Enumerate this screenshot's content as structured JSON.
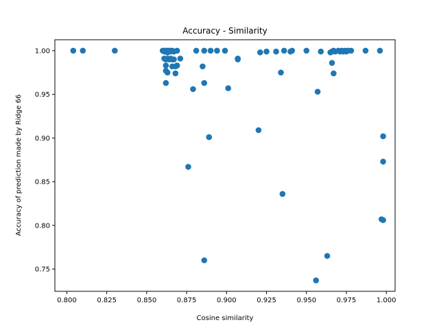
{
  "chart_data": {
    "type": "scatter",
    "title": "Accuracy - Similarity",
    "xlabel": "Cosine similarity",
    "ylabel": "Accuracy of prediction made by Ridge 66",
    "xlim": [
      0.7925,
      1.0055
    ],
    "ylim": [
      0.7245,
      1.0125
    ],
    "xticks": [
      0.8,
      0.825,
      0.85,
      0.875,
      0.9,
      0.925,
      0.95,
      0.975,
      1.0
    ],
    "xtick_labels": [
      "0.800",
      "0.825",
      "0.850",
      "0.875",
      "0.900",
      "0.925",
      "0.950",
      "0.975",
      "1.000"
    ],
    "yticks": [
      0.75,
      0.8,
      0.85,
      0.9,
      0.95,
      1.0
    ],
    "ytick_labels": [
      "0.75",
      "0.80",
      "0.85",
      "0.90",
      "0.95",
      "1.00"
    ],
    "grid": false,
    "marker_color": "#1f77b4",
    "series": [
      {
        "points": [
          [
            0.804,
            1.0
          ],
          [
            0.81,
            1.0
          ],
          [
            0.83,
            1.0
          ],
          [
            0.86,
            1.0
          ],
          [
            0.861,
            1.0
          ],
          [
            0.862,
            1.0
          ],
          [
            0.863,
            1.0
          ],
          [
            0.864,
            1.0
          ],
          [
            0.865,
            1.0
          ],
          [
            0.866,
            1.0
          ],
          [
            0.867,
            0.999
          ],
          [
            0.869,
            1.0
          ],
          [
            0.861,
            0.999
          ],
          [
            0.863,
            0.998
          ],
          [
            0.865,
            0.999
          ],
          [
            0.861,
            0.991
          ],
          [
            0.862,
            0.99
          ],
          [
            0.863,
            0.991
          ],
          [
            0.864,
            0.99
          ],
          [
            0.865,
            0.991
          ],
          [
            0.866,
            0.99
          ],
          [
            0.867,
            0.99
          ],
          [
            0.871,
            0.991
          ],
          [
            0.862,
            0.983
          ],
          [
            0.866,
            0.982
          ],
          [
            0.868,
            0.982
          ],
          [
            0.869,
            0.983
          ],
          [
            0.862,
            0.977
          ],
          [
            0.863,
            0.975
          ],
          [
            0.868,
            0.974
          ],
          [
            0.862,
            0.963
          ],
          [
            0.881,
            1.0
          ],
          [
            0.886,
            1.0
          ],
          [
            0.89,
            1.0
          ],
          [
            0.894,
            1.0
          ],
          [
            0.899,
            1.0
          ],
          [
            0.885,
            0.982
          ],
          [
            0.886,
            0.963
          ],
          [
            0.879,
            0.956
          ],
          [
            0.907,
            0.991
          ],
          [
            0.907,
            0.99
          ],
          [
            0.901,
            0.957
          ],
          [
            0.889,
            0.901
          ],
          [
            0.876,
            0.867
          ],
          [
            0.886,
            0.76
          ],
          [
            0.921,
            0.998
          ],
          [
            0.925,
            0.999
          ],
          [
            0.931,
            0.999
          ],
          [
            0.936,
            1.0
          ],
          [
            0.94,
            0.999
          ],
          [
            0.941,
            1.0
          ],
          [
            0.95,
            1.0
          ],
          [
            0.959,
            0.999
          ],
          [
            0.934,
            0.975
          ],
          [
            0.957,
            0.953
          ],
          [
            0.92,
            0.909
          ],
          [
            0.935,
            0.836
          ],
          [
            0.963,
            0.765
          ],
          [
            0.956,
            0.737
          ],
          [
            0.965,
            0.998
          ],
          [
            0.966,
            0.999
          ],
          [
            0.967,
            1.0
          ],
          [
            0.968,
            0.999
          ],
          [
            0.97,
            1.0
          ],
          [
            0.971,
            0.999
          ],
          [
            0.972,
            1.0
          ],
          [
            0.973,
            0.999
          ],
          [
            0.974,
            1.0
          ],
          [
            0.975,
            0.999
          ],
          [
            0.976,
            1.0
          ],
          [
            0.978,
            1.0
          ],
          [
            0.987,
            1.0
          ],
          [
            0.996,
            1.0
          ],
          [
            0.966,
            0.986
          ],
          [
            0.967,
            0.974
          ],
          [
            0.998,
            0.902
          ],
          [
            0.998,
            0.873
          ],
          [
            0.997,
            0.807
          ],
          [
            0.998,
            0.806
          ]
        ]
      }
    ]
  }
}
